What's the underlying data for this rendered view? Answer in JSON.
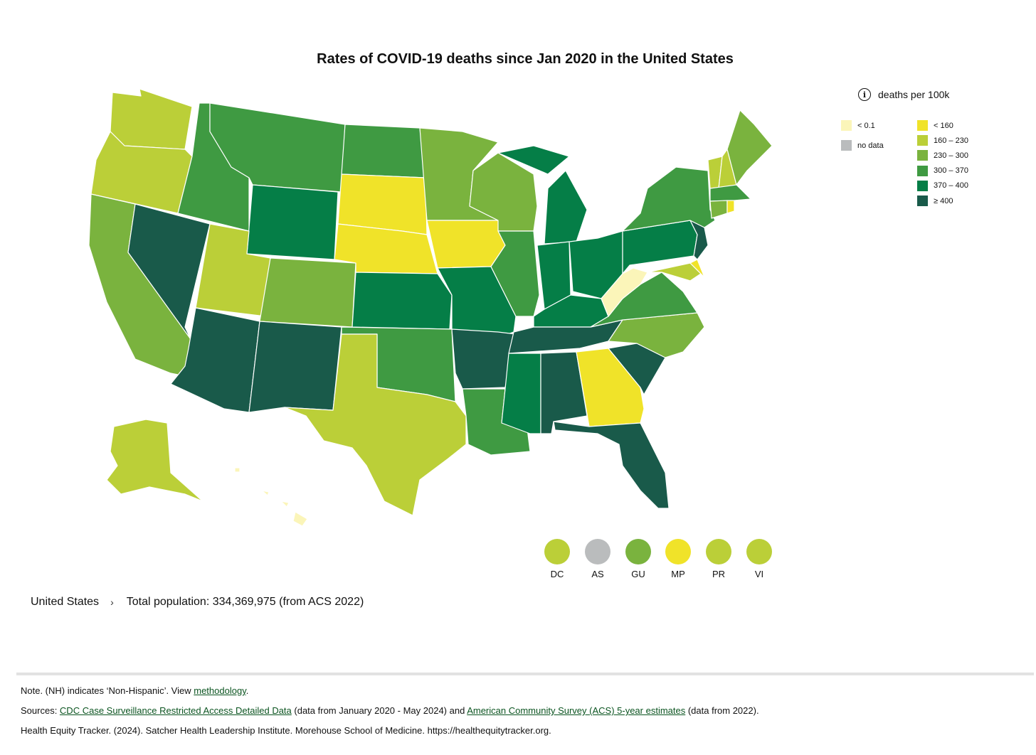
{
  "title": "Rates of COVID-19 deaths since Jan 2020 in the United States",
  "legend": {
    "title": "deaths per 100k",
    "info_icon": "info-icon",
    "special": [
      {
        "label": "< 0.1",
        "color": "#fbf5b9"
      },
      {
        "label": "no data",
        "color": "#babcbd"
      }
    ],
    "bins": [
      {
        "label": "< 160",
        "color": "#f0e329"
      },
      {
        "label": "160 – 230",
        "color": "#bbcf38"
      },
      {
        "label": "230 – 300",
        "color": "#7ab33e"
      },
      {
        "label": "300 – 370",
        "color": "#3f9a42"
      },
      {
        "label": "370 – 400",
        "color": "#057e47"
      },
      {
        "label": "≥ 400",
        "color": "#195a4a"
      }
    ]
  },
  "state_bins": {
    "WA": 1,
    "OR": 1,
    "CA": 2,
    "NV": 5,
    "ID": 3,
    "MT": 3,
    "WY": 4,
    "UT": 1,
    "AZ": 5,
    "CO": 2,
    "NM": 5,
    "ND": 3,
    "SD": 0,
    "NE": 0,
    "KS": 4,
    "OK": 3,
    "TX": 1,
    "MN": 2,
    "IA": 0,
    "MO": 4,
    "AR": 5,
    "LA": 3,
    "WI": 2,
    "IL": 3,
    "MI": 4,
    "IN": 4,
    "OH": 4,
    "KY": 4,
    "TN": 5,
    "MS": 4,
    "AL": 5,
    "GA": 0,
    "FL": 5,
    "SC": 5,
    "NC": 2,
    "VA": 3,
    "WV": -1,
    "PA": 4,
    "NY": 3,
    "VT": 1,
    "NH": 1,
    "ME": 2,
    "MA": 3,
    "CT": 2,
    "RI": 0,
    "NJ": 5,
    "DE": 0,
    "MD": 1,
    "AK": 1,
    "HI": -1
  },
  "territories": [
    {
      "code": "DC",
      "bin": 1
    },
    {
      "code": "AS",
      "bin": "nodata"
    },
    {
      "code": "GU",
      "bin": 2
    },
    {
      "code": "MP",
      "bin": 0
    },
    {
      "code": "PR",
      "bin": 1
    },
    {
      "code": "VI",
      "bin": 1
    }
  ],
  "breadcrumb": {
    "location": "United States",
    "separator": "›",
    "population": "Total population: 334,369,975 (from ACS 2022)"
  },
  "footer": {
    "note_pre": "Note. (NH) indicates ‘Non-Hispanic’. View ",
    "note_link": "methodology",
    "note_post": ".",
    "sources_pre": "Sources: ",
    "source1": "CDC Case Surveillance Restricted Access Detailed Data",
    "sources_mid": " (data from January 2020 - May 2024) and ",
    "source2": "American Community Survey (ACS) 5-year estimates",
    "sources_post": " (data from 2022).",
    "citation": "Health Equity Tracker. (2024). Satcher Health Leadership Institute. Morehouse School of Medicine. https://healthequitytracker.org."
  }
}
